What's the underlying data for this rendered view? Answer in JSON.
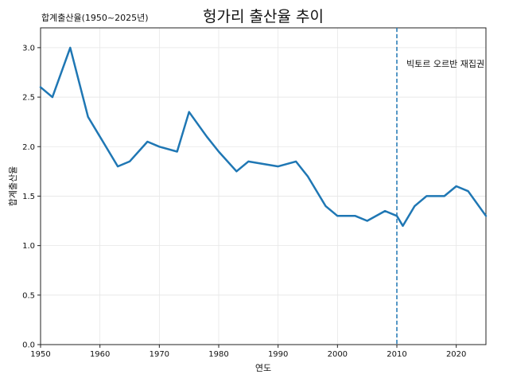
{
  "chart_data": {
    "type": "line",
    "title": "헝가리 출산율 추이",
    "subtitle": "합계출산율(1950~2025년)",
    "xlabel": "연도",
    "ylabel": "합계출산율",
    "xlim": [
      1950,
      2025
    ],
    "ylim": [
      0.0,
      3.2
    ],
    "x_ticks": [
      1950,
      1960,
      1970,
      1980,
      1990,
      2000,
      2010,
      2020
    ],
    "y_ticks": [
      "0.0",
      "0.5",
      "1.0",
      "1.5",
      "2.0",
      "2.5",
      "3.0"
    ],
    "grid": true,
    "line_color": "#1f77b4",
    "series": [
      {
        "x": [
          1950,
          1952,
          1955,
          1958,
          1960,
          1963,
          1965,
          1968,
          1970,
          1973,
          1975,
          1978,
          1980,
          1983,
          1985,
          1988,
          1990,
          1993,
          1995,
          1998,
          2000,
          2003,
          2005,
          2008,
          2010,
          2011,
          2013,
          2015,
          2018,
          2020,
          2022,
          2025
        ],
        "y": [
          2.6,
          2.5,
          3.0,
          2.3,
          2.1,
          1.8,
          1.85,
          2.05,
          2.0,
          1.95,
          2.35,
          2.1,
          1.95,
          1.75,
          1.85,
          1.82,
          1.8,
          1.85,
          1.7,
          1.4,
          1.3,
          1.3,
          1.25,
          1.35,
          1.3,
          1.2,
          1.4,
          1.5,
          1.5,
          1.6,
          1.55,
          1.3
        ]
      }
    ],
    "annotations": [
      {
        "text": "빅토르 오르반 재집권",
        "x": 2010,
        "style": "vertical dashed line"
      }
    ]
  }
}
